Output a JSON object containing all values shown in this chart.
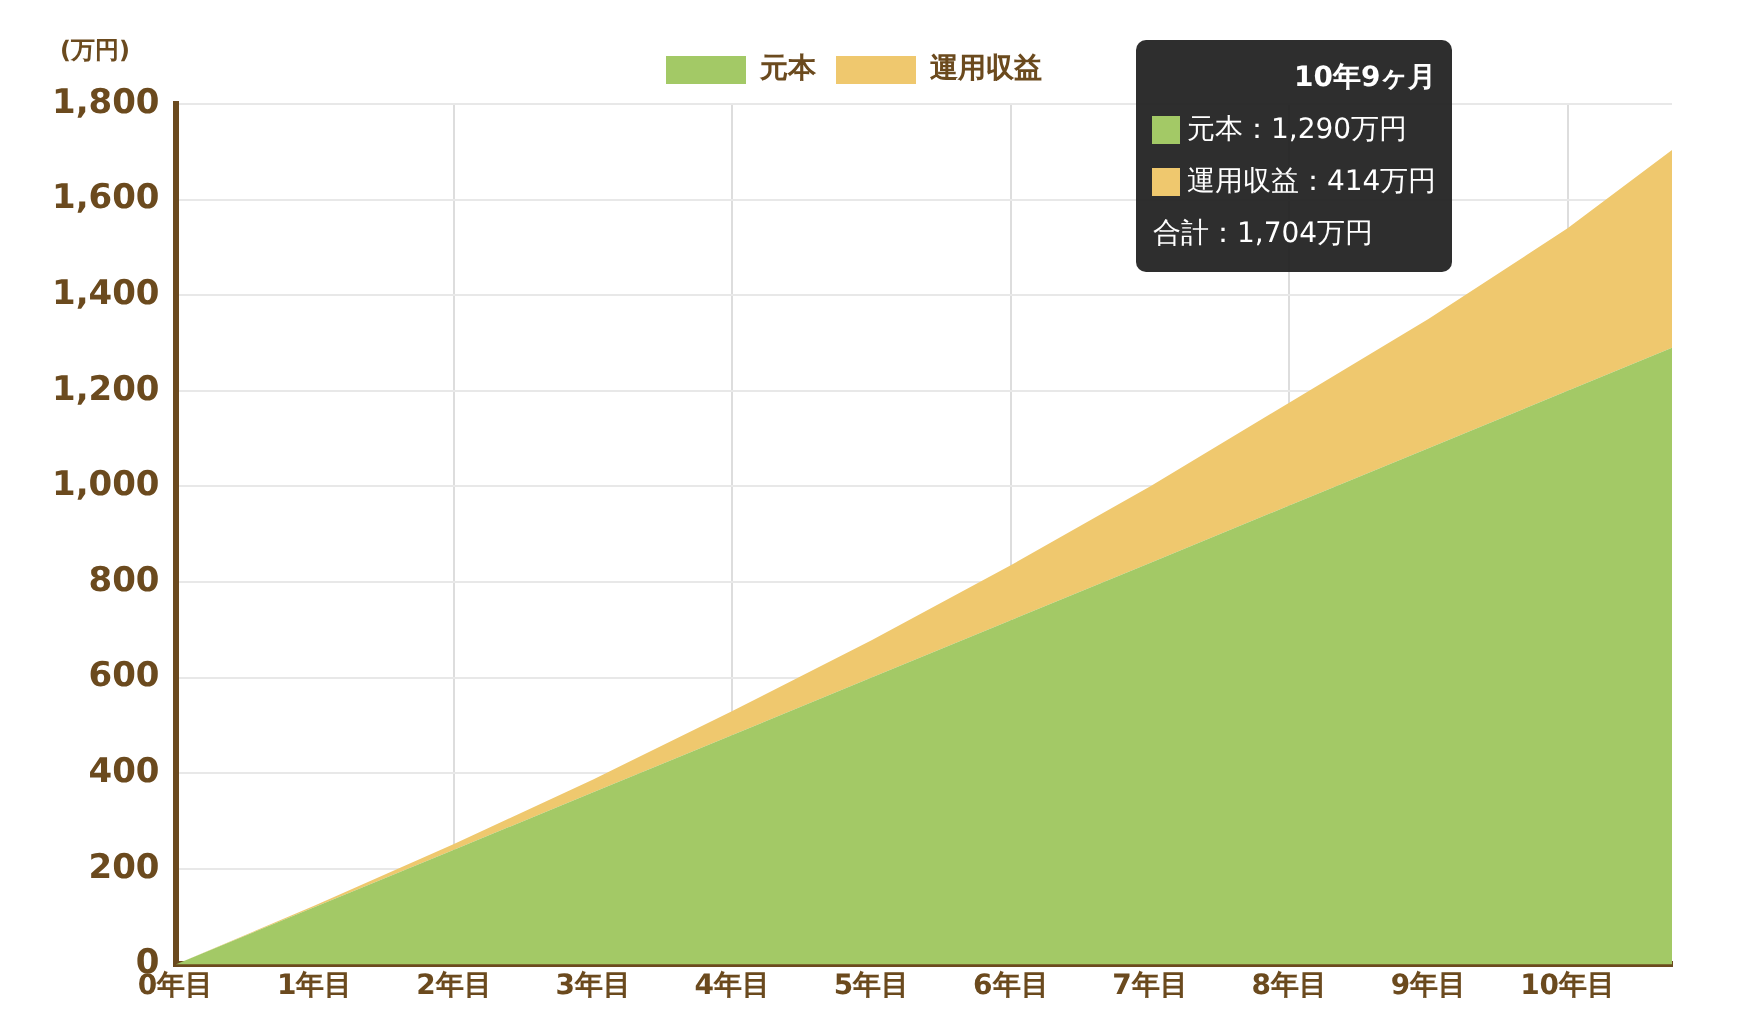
{
  "chart_data": {
    "type": "area",
    "stacked": true,
    "ylabel": "(万円)",
    "x": [
      0,
      1,
      2,
      3,
      4,
      5,
      6,
      7,
      8,
      9,
      10,
      10.75
    ],
    "series": [
      {
        "name": "元本",
        "color": "#a3c966",
        "values": [
          0,
          120,
          240,
          360,
          480,
          600,
          720,
          840,
          960,
          1080,
          1200,
          1290
        ]
      },
      {
        "name": "運用収益",
        "color": "#efc86e",
        "values": [
          0,
          3,
          12,
          27,
          50,
          78,
          115,
          160,
          215,
          270,
          340,
          414
        ]
      }
    ],
    "xlim": [
      0,
      10.75
    ],
    "xticks": [
      {
        "value": 0,
        "label": "0年目"
      },
      {
        "value": 1,
        "label": "1年目"
      },
      {
        "value": 2,
        "label": "2年目"
      },
      {
        "value": 3,
        "label": "3年目"
      },
      {
        "value": 4,
        "label": "4年目"
      },
      {
        "value": 5,
        "label": "5年目"
      },
      {
        "value": 6,
        "label": "6年目"
      },
      {
        "value": 7,
        "label": "7年目"
      },
      {
        "value": 8,
        "label": "8年目"
      },
      {
        "value": 9,
        "label": "9年目"
      },
      {
        "value": 10,
        "label": "10年目"
      }
    ],
    "ylim": [
      0,
      1800
    ],
    "yticks": [
      0,
      200,
      400,
      600,
      800,
      {
        "value": 1000,
        "label": "1,000"
      },
      {
        "value": 1200,
        "label": "1,200"
      },
      {
        "value": 1400,
        "label": "1,400"
      },
      {
        "value": 1600,
        "label": "1,600"
      },
      {
        "value": 1800,
        "label": "1,800"
      }
    ],
    "grid": true,
    "legend": "top",
    "annotations": [
      "10年9ヶ月",
      "元本：1,290万円",
      "運用収益：414万円",
      "合計：1,704万円"
    ]
  }
}
